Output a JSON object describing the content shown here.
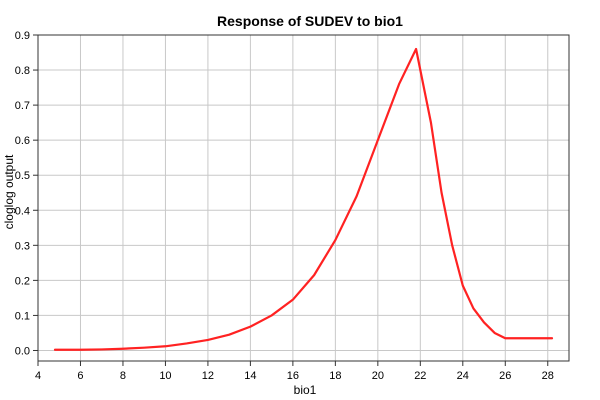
{
  "chart_data": {
    "type": "line",
    "title": "Response of SUDEV to bio1",
    "xlabel": "bio1",
    "ylabel": "cloglog output",
    "xlim": [
      4,
      29
    ],
    "ylim": [
      -0.03,
      0.9
    ],
    "xticks": [
      4,
      6,
      8,
      10,
      12,
      14,
      16,
      18,
      20,
      22,
      24,
      26,
      28
    ],
    "yticks": [
      0.0,
      0.1,
      0.2,
      0.3,
      0.4,
      0.5,
      0.6,
      0.7,
      0.8,
      0.9
    ],
    "xtick_labels": [
      "4",
      "6",
      "8",
      "10",
      "12",
      "14",
      "16",
      "18",
      "20",
      "22",
      "24",
      "26",
      "28"
    ],
    "ytick_labels": [
      "0.0",
      "0.1",
      "0.2",
      "0.3",
      "0.4",
      "0.5",
      "0.6",
      "0.7",
      "0.8",
      "0.9"
    ],
    "grid": true,
    "legend": "none",
    "series": [
      {
        "color": "#ff2222",
        "x": [
          4.8,
          6,
          7,
          8,
          9,
          10,
          11,
          12,
          13,
          14,
          15,
          16,
          17,
          18,
          19,
          20,
          21,
          21.8,
          22.5,
          23,
          23.5,
          24,
          24.5,
          25,
          25.5,
          26,
          26.3,
          27,
          28,
          28.2
        ],
        "y": [
          0.002,
          0.002,
          0.003,
          0.005,
          0.008,
          0.012,
          0.02,
          0.03,
          0.045,
          0.068,
          0.1,
          0.145,
          0.215,
          0.315,
          0.44,
          0.6,
          0.76,
          0.86,
          0.65,
          0.45,
          0.3,
          0.185,
          0.12,
          0.08,
          0.05,
          0.035,
          0.035,
          0.035,
          0.035,
          0.035
        ]
      }
    ]
  }
}
